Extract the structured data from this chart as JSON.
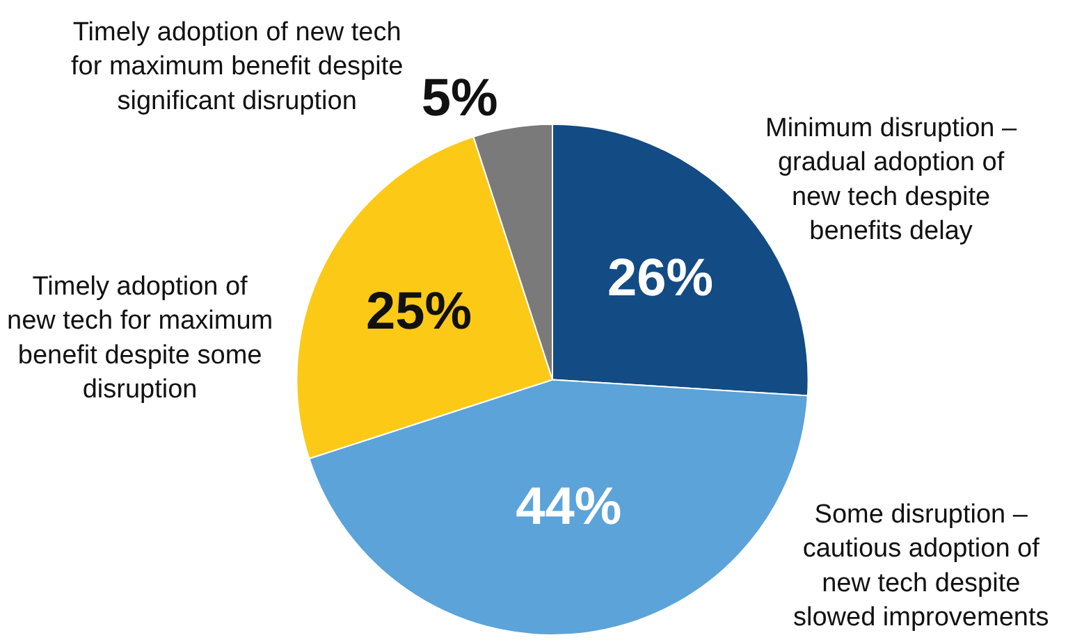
{
  "chart_data": {
    "type": "pie",
    "categories": [
      "Minimum disruption – gradual adoption of new tech despite benefits delay",
      "Some disruption – cautious adoption of new tech despite slowed improvements",
      "Timely adoption of new tech for maximum benefit despite some disruption",
      "Timely adoption of new tech for maximum benefit despite significant disruption"
    ],
    "values": [
      26,
      44,
      25,
      5
    ],
    "value_labels": [
      "26%",
      "44%",
      "25%",
      "5%"
    ],
    "colors": [
      "#134b84",
      "#5ba3d9",
      "#fcc917",
      "#7a7a7a"
    ]
  }
}
